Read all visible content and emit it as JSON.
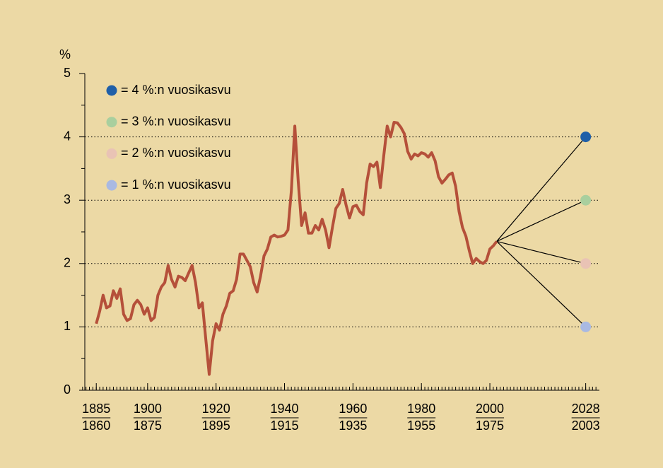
{
  "chart_data": {
    "type": "line",
    "y_label": "%",
    "line": {
      "color": "#b5503a",
      "x": [
        1885,
        1886,
        1887,
        1888,
        1889,
        1890,
        1891,
        1892,
        1893,
        1894,
        1895,
        1896,
        1897,
        1898,
        1899,
        1900,
        1901,
        1902,
        1903,
        1904,
        1905,
        1906,
        1907,
        1908,
        1909,
        1910,
        1911,
        1912,
        1913,
        1914,
        1915,
        1916,
        1917,
        1918,
        1919,
        1920,
        1921,
        1922,
        1923,
        1924,
        1925,
        1926,
        1927,
        1928,
        1929,
        1930,
        1931,
        1932,
        1933,
        1934,
        1935,
        1936,
        1937,
        1938,
        1939,
        1940,
        1941,
        1942,
        1943,
        1944,
        1945,
        1946,
        1947,
        1948,
        1949,
        1950,
        1951,
        1952,
        1953,
        1954,
        1955,
        1956,
        1957,
        1958,
        1959,
        1960,
        1961,
        1962,
        1963,
        1964,
        1965,
        1966,
        1967,
        1968,
        1969,
        1970,
        1971,
        1972,
        1973,
        1974,
        1975,
        1976,
        1977,
        1978,
        1979,
        1980,
        1981,
        1982,
        1983,
        1984,
        1985,
        1986,
        1987,
        1988,
        1989,
        1990,
        1991,
        1992,
        1993,
        1994,
        1995,
        1996,
        1997,
        1998,
        1999,
        2000,
        2001,
        2002
      ],
      "values": [
        1.05,
        1.25,
        1.5,
        1.3,
        1.33,
        1.57,
        1.45,
        1.6,
        1.2,
        1.1,
        1.13,
        1.35,
        1.42,
        1.35,
        1.2,
        1.3,
        1.1,
        1.15,
        1.5,
        1.63,
        1.7,
        1.97,
        1.75,
        1.63,
        1.8,
        1.78,
        1.73,
        1.85,
        1.97,
        1.7,
        1.3,
        1.38,
        0.8,
        0.25,
        0.78,
        1.05,
        0.95,
        1.2,
        1.33,
        1.53,
        1.57,
        1.75,
        2.15,
        2.15,
        2.05,
        1.95,
        1.7,
        1.55,
        1.8,
        2.12,
        2.23,
        2.42,
        2.45,
        2.42,
        2.43,
        2.45,
        2.53,
        3.15,
        4.17,
        3.3,
        2.6,
        2.8,
        2.48,
        2.48,
        2.6,
        2.53,
        2.7,
        2.53,
        2.25,
        2.57,
        2.87,
        2.95,
        3.17,
        2.92,
        2.72,
        2.9,
        2.92,
        2.82,
        2.77,
        3.27,
        3.57,
        3.53,
        3.6,
        3.2,
        3.7,
        4.17,
        4.0,
        4.23,
        4.22,
        4.15,
        4.05,
        3.77,
        3.65,
        3.73,
        3.7,
        3.75,
        3.73,
        3.68,
        3.75,
        3.62,
        3.37,
        3.27,
        3.33,
        3.4,
        3.43,
        3.22,
        2.82,
        2.57,
        2.43,
        2.2,
        2.0,
        2.08,
        2.03,
        2.0,
        2.05,
        2.23,
        2.28,
        2.35
      ]
    },
    "projections": [
      {
        "name": "= 4 %:n vuosikasvu",
        "color": "#1f5fa8",
        "x": 2028,
        "value": 4
      },
      {
        "name": "= 3 %:n vuosikasvu",
        "color": "#a9cf9e",
        "x": 2028,
        "value": 3
      },
      {
        "name": "= 2 %:n vuosikasvu",
        "color": "#e9c3b5",
        "x": 2028,
        "value": 2
      },
      {
        "name": "= 1 %:n vuosikasvu",
        "color": "#a9b9e2",
        "x": 2028,
        "value": 1
      }
    ],
    "xlim": [
      1880,
      2032
    ],
    "xticks": [
      1885,
      1900,
      1920,
      1940,
      1960,
      1980,
      2000,
      2028
    ],
    "x_sub_labels": [
      "1860",
      "1875",
      "1895",
      "1915",
      "1935",
      "1955",
      "1975",
      "2003"
    ],
    "xminor": [
      1881,
      1882,
      1883,
      1884,
      1885,
      1886,
      1887,
      1888,
      1889,
      1890,
      1891,
      1892,
      1893,
      1894,
      1895,
      1896,
      1897,
      1898,
      1899,
      1900,
      1901,
      1902,
      1903,
      1904,
      1905,
      1906,
      1907,
      1908,
      1909,
      1910,
      1911,
      1912,
      1913,
      1914,
      1915,
      1916,
      1917,
      1918,
      1919,
      1920,
      1921,
      1922,
      1923,
      1924,
      1925,
      1926,
      1927,
      1928,
      1929,
      1930,
      1931,
      1932,
      1933,
      1934,
      1935,
      1936,
      1937,
      1938,
      1939,
      1940,
      1941,
      1942,
      1943,
      1944,
      1945,
      1946,
      1947,
      1948,
      1949,
      1950,
      1951,
      1952,
      1953,
      1954,
      1955,
      1956,
      1957,
      1958,
      1959,
      1960,
      1961,
      1962,
      1963,
      1964,
      1965,
      1966,
      1967,
      1968,
      1969,
      1970,
      1971,
      1972,
      1973,
      1974,
      1975,
      1976,
      1977,
      1978,
      1979,
      1980,
      1981,
      1982,
      1983,
      1984,
      1985,
      1986,
      1987,
      1988,
      1989,
      1990,
      1991,
      1992,
      1993,
      1994,
      1995,
      1996,
      1997,
      1998,
      1999,
      2000,
      2001,
      2002,
      2003,
      2004,
      2005,
      2006,
      2007,
      2008,
      2009,
      2010,
      2011,
      2012,
      2013,
      2014,
      2015,
      2016,
      2017,
      2018,
      2019,
      2020,
      2021,
      2022,
      2023,
      2024,
      2025,
      2026,
      2027,
      2028,
      2029,
      2030,
      2031
    ],
    "ylim": [
      0,
      5
    ],
    "yticks": [
      0,
      1,
      2,
      3,
      4,
      5
    ],
    "yminor": [
      0.5,
      1.5,
      2.5,
      3.5,
      4.5
    ],
    "grid": true,
    "legend": "top-left"
  }
}
